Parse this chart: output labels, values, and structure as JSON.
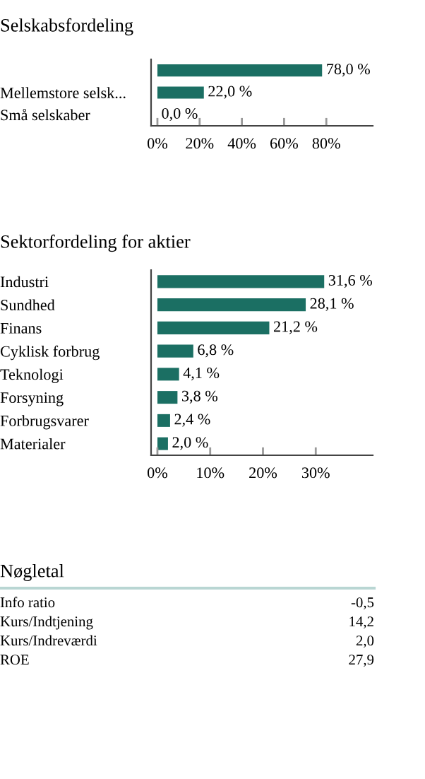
{
  "chart_data": [
    {
      "type": "bar",
      "orientation": "horizontal",
      "title": "Selskabsfordeling",
      "categories": [
        null,
        "Mellemstore selsk...",
        "Små selskaber"
      ],
      "values": [
        78.0,
        22.0,
        0.0
      ],
      "value_labels": [
        "78,0 %",
        "22,0 %",
        "0,0 %"
      ],
      "color": "#1b6f63",
      "xlim": [
        -3,
        102
      ],
      "xticks": [
        {
          "value": 0,
          "label": "0%"
        },
        {
          "value": 20,
          "label": "20%"
        },
        {
          "value": 40,
          "label": "40%"
        },
        {
          "value": 60,
          "label": "60%"
        },
        {
          "value": 80,
          "label": "80%"
        }
      ],
      "grid": false,
      "legend": false
    },
    {
      "type": "bar",
      "orientation": "horizontal",
      "title": "Sektorfordeling for aktier",
      "categories": [
        "Industri",
        "Sundhed",
        "Finans",
        "Cyklisk forbrug",
        "Teknologi",
        "Forsyning",
        "Forbrugsvarer",
        "Materialer"
      ],
      "values": [
        31.6,
        28.1,
        21.2,
        6.8,
        4.1,
        3.8,
        2.4,
        2.0
      ],
      "value_labels": [
        "31,6 %",
        "28,1 %",
        "21,2 %",
        "6,8 %",
        "4,1 %",
        "3,8 %",
        "2,4 %",
        "2,0 %"
      ],
      "color": "#1b6f63",
      "xlim": [
        -1.2,
        40.8
      ],
      "xticks": [
        {
          "value": 0,
          "label": "0%"
        },
        {
          "value": 10,
          "label": "10%"
        },
        {
          "value": 20,
          "label": "20%"
        },
        {
          "value": 30,
          "label": "30%"
        }
      ],
      "grid": false,
      "legend": false
    },
    {
      "type": "other",
      "title": "Nøgletal",
      "categories": [
        "Info ratio",
        "Kurs/Indtjening",
        "Kurs/Indreværdi",
        "ROE"
      ],
      "value_labels": [
        "-0,5",
        "14,2",
        "2,0",
        "27,9"
      ]
    }
  ]
}
